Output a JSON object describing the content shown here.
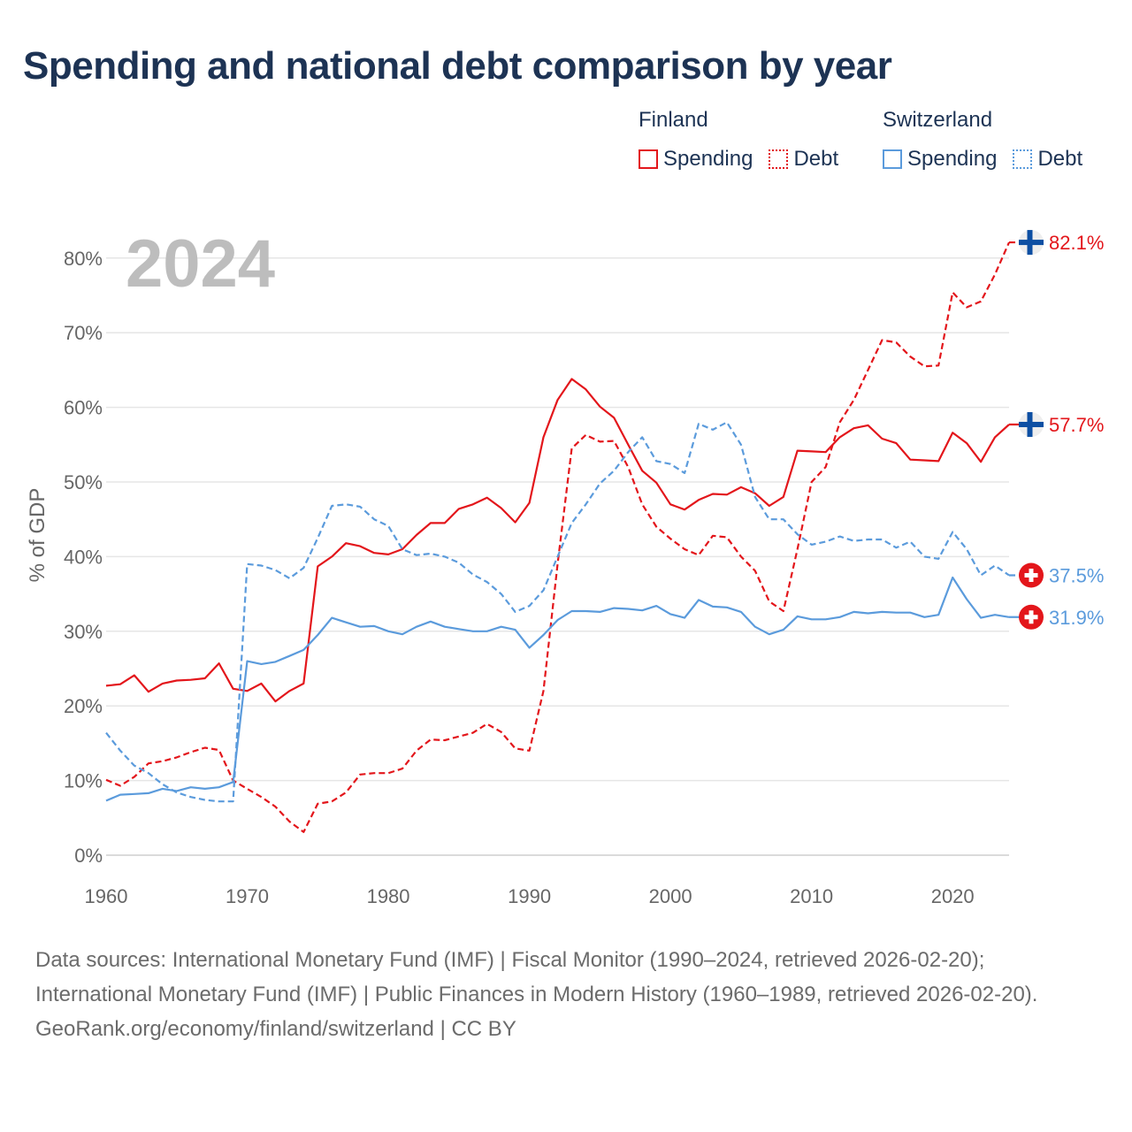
{
  "title": "Spending and national debt comparison by year",
  "legend": {
    "groups": [
      {
        "country": "Finland",
        "spending_label": "Spending",
        "debt_label": "Debt"
      },
      {
        "country": "Switzerland",
        "spending_label": "Spending",
        "debt_label": "Debt"
      }
    ]
  },
  "colors": {
    "finland": "#e3161b",
    "switzerland": "#5b9bdc",
    "title": "#1d3354",
    "year_watermark": "#bdbdbd"
  },
  "chart_data": {
    "type": "line",
    "year_label": "2024",
    "ylabel": "% of GDP",
    "ylim": [
      0,
      82
    ],
    "xlim": [
      1960,
      2024
    ],
    "y_ticks": [
      "0%",
      "10%",
      "20%",
      "30%",
      "40%",
      "50%",
      "60%",
      "70%",
      "80%"
    ],
    "y_tick_values": [
      0,
      10,
      20,
      30,
      40,
      50,
      60,
      70,
      80
    ],
    "x_ticks": [
      "1960",
      "1970",
      "1980",
      "1990",
      "2000",
      "2010",
      "2020"
    ],
    "x_tick_values": [
      1960,
      1970,
      1980,
      1990,
      2000,
      2010,
      2020
    ],
    "start_year": 1960,
    "series": [
      {
        "name": "Finland Debt",
        "country": "Finland",
        "measure": "Debt",
        "style": "dashed",
        "color": "#e3161b",
        "end_label": "82.1%",
        "flag": "finland",
        "values": [
          10.1,
          9.3,
          10.5,
          12.3,
          12.6,
          13.1,
          13.8,
          14.4,
          14.1,
          10.0,
          8.9,
          7.8,
          6.5,
          4.5,
          3.1,
          6.9,
          7.2,
          8.4,
          10.8,
          11.0,
          11.0,
          11.6,
          14.0,
          15.5,
          15.4,
          15.9,
          16.4,
          17.6,
          16.5,
          14.3,
          14.0,
          22.0,
          39.0,
          54.5,
          56.3,
          55.4,
          55.5,
          52.0,
          47.0,
          44.0,
          42.4,
          41.0,
          40.2,
          42.8,
          42.6,
          40.0,
          38.1,
          34.0,
          32.7,
          41.0,
          50.0,
          52.0,
          58.0,
          61.0,
          65.0,
          69.0,
          68.7,
          66.8,
          65.5,
          65.6,
          75.4,
          73.4,
          74.2,
          77.8,
          82.1
        ]
      },
      {
        "name": "Finland Spending",
        "country": "Finland",
        "measure": "Spending",
        "style": "solid",
        "color": "#e3161b",
        "end_label": "57.7%",
        "flag": "finland",
        "values": [
          22.7,
          22.9,
          24.1,
          21.9,
          23.0,
          23.4,
          23.5,
          23.7,
          25.7,
          22.3,
          22.0,
          23.0,
          20.6,
          22.0,
          23.0,
          38.7,
          40.0,
          41.8,
          41.4,
          40.5,
          40.3,
          41.0,
          42.9,
          44.5,
          44.5,
          46.4,
          47.0,
          47.9,
          46.5,
          44.6,
          47.2,
          56.0,
          61.0,
          63.8,
          62.4,
          60.1,
          58.6,
          55.0,
          51.5,
          49.9,
          47.0,
          46.3,
          47.6,
          48.4,
          48.3,
          49.3,
          48.5,
          46.8,
          48.0,
          54.2,
          54.1,
          54.0,
          56.0,
          57.2,
          57.6,
          55.8,
          55.2,
          53.0,
          52.9,
          52.8,
          56.6,
          55.2,
          52.7,
          56.0,
          57.7
        ]
      },
      {
        "name": "Switzerland Debt",
        "country": "Switzerland",
        "measure": "Debt",
        "style": "dashed",
        "color": "#5b9bdc",
        "end_label": "37.5%",
        "flag": "switzerland",
        "values": [
          16.4,
          14.0,
          12.0,
          11.0,
          9.5,
          8.4,
          7.8,
          7.4,
          7.2,
          7.2,
          39.0,
          38.8,
          38.2,
          37.1,
          38.5,
          42.5,
          46.8,
          47.0,
          46.7,
          45.0,
          44.1,
          41.0,
          40.2,
          40.4,
          40.0,
          39.2,
          37.6,
          36.6,
          35.0,
          32.6,
          33.4,
          35.5,
          40.0,
          44.5,
          47.0,
          49.8,
          51.5,
          54.0,
          56.0,
          52.8,
          52.4,
          51.2,
          57.8,
          57.0,
          58.0,
          55.0,
          48.0,
          45.0,
          45.0,
          43.0,
          41.6,
          42.0,
          42.7,
          42.1,
          42.3,
          42.3,
          41.2,
          42.0,
          40.0,
          39.7,
          43.3,
          41.0,
          37.5,
          38.8,
          37.5
        ]
      },
      {
        "name": "Switzerland Spending",
        "country": "Switzerland",
        "measure": "Spending",
        "style": "solid",
        "color": "#5b9bdc",
        "end_label": "31.9%",
        "flag": "switzerland",
        "values": [
          7.3,
          8.1,
          8.2,
          8.3,
          8.9,
          8.6,
          9.1,
          8.9,
          9.1,
          9.8,
          26.0,
          25.6,
          25.9,
          26.7,
          27.5,
          29.5,
          31.8,
          31.2,
          30.6,
          30.7,
          30.0,
          29.6,
          30.6,
          31.3,
          30.6,
          30.3,
          30.0,
          30.0,
          30.6,
          30.2,
          27.8,
          29.5,
          31.5,
          32.7,
          32.7,
          32.6,
          33.1,
          33.0,
          32.8,
          33.4,
          32.3,
          31.8,
          34.2,
          33.3,
          33.2,
          32.6,
          30.6,
          29.6,
          30.2,
          32.0,
          31.6,
          31.6,
          31.9,
          32.6,
          32.4,
          32.6,
          32.5,
          32.5,
          31.9,
          32.2,
          37.2,
          34.3,
          31.8,
          32.2,
          31.9
        ]
      }
    ]
  },
  "sources": {
    "line1": "Data sources: International Monetary Fund (IMF) | Fiscal Monitor (1990–2024, retrieved 2026-02-20); International Monetary Fund (IMF) | Public Finances in Modern History (1960–1989, retrieved 2026-02-20).",
    "line2": "GeoRank.org/economy/finland/switzerland | CC BY"
  }
}
